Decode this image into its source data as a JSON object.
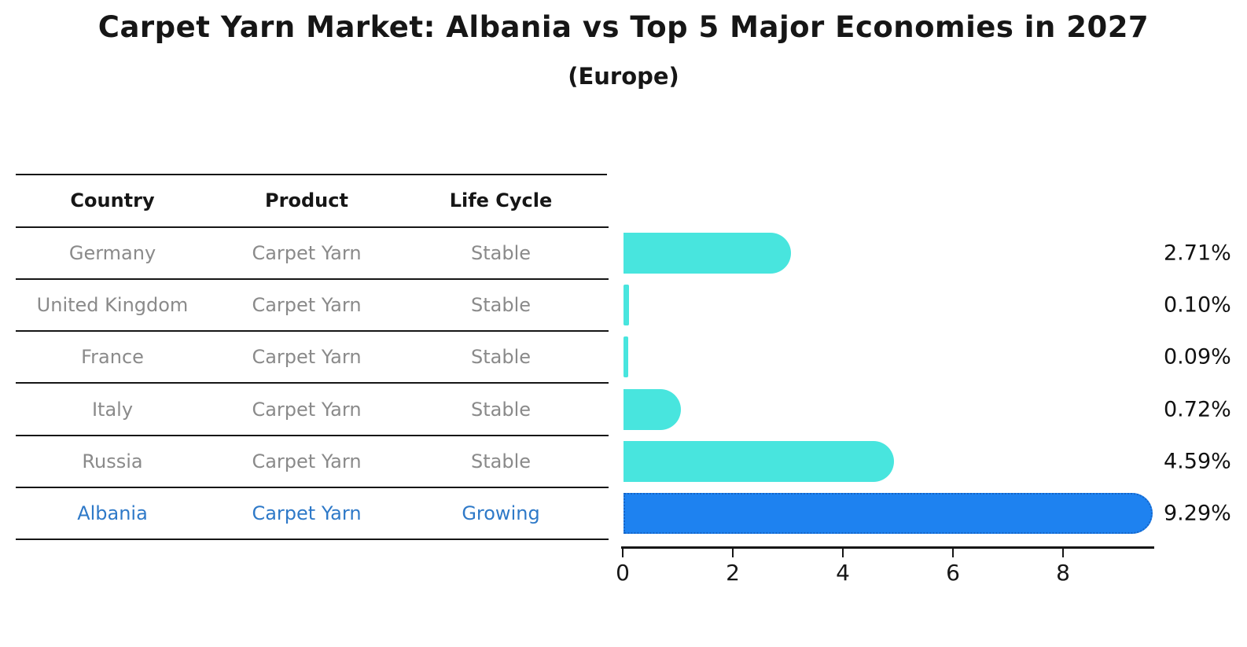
{
  "title": "Carpet Yarn Market: Albania vs Top 5 Major Economies in 2027",
  "subtitle": "(Europe)",
  "table": {
    "headers": [
      "Country",
      "Product",
      "Life Cycle"
    ],
    "rows": [
      {
        "country": "Germany",
        "product": "Carpet Yarn",
        "life_cycle": "Stable",
        "highlight": false
      },
      {
        "country": "United Kingdom",
        "product": "Carpet Yarn",
        "life_cycle": "Stable",
        "highlight": false
      },
      {
        "country": "France",
        "product": "Carpet Yarn",
        "life_cycle": "Stable",
        "highlight": false
      },
      {
        "country": "Italy",
        "product": "Carpet Yarn",
        "life_cycle": "Stable",
        "highlight": false
      },
      {
        "country": "Russia",
        "product": "Carpet Yarn",
        "life_cycle": "Stable",
        "highlight": false
      },
      {
        "country": "Albania",
        "product": "Carpet Yarn",
        "life_cycle": "Growing",
        "highlight": true
      }
    ]
  },
  "chart_data": {
    "type": "bar",
    "orientation": "horizontal",
    "title": "Carpet Yarn Market: Albania vs Top 5 Major Economies in 2027 (Europe)",
    "categories": [
      "Germany",
      "United Kingdom",
      "France",
      "Italy",
      "Russia",
      "Albania"
    ],
    "values": [
      2.71,
      0.1,
      0.09,
      0.72,
      4.59,
      9.29
    ],
    "value_labels": [
      "2.71%",
      "0.10%",
      "0.09%",
      "0.72%",
      "4.59%",
      "9.29%"
    ],
    "x_ticks": [
      0,
      2,
      4,
      6,
      8
    ],
    "xlim": [
      0,
      9.7
    ],
    "grid": false,
    "legend": "none",
    "bar_colors": [
      "#48e5de",
      "#48e5de",
      "#48e5de",
      "#48e5de",
      "#48e5de",
      "#1e82f0"
    ]
  },
  "colors": {
    "bar_cyan": "#48e5de",
    "bar_blue": "#1e82f0",
    "highlight_border": "#1565c8",
    "highlight_text": "#2e79c8",
    "muted_text": "#8a8a8a",
    "line": "#161616"
  }
}
